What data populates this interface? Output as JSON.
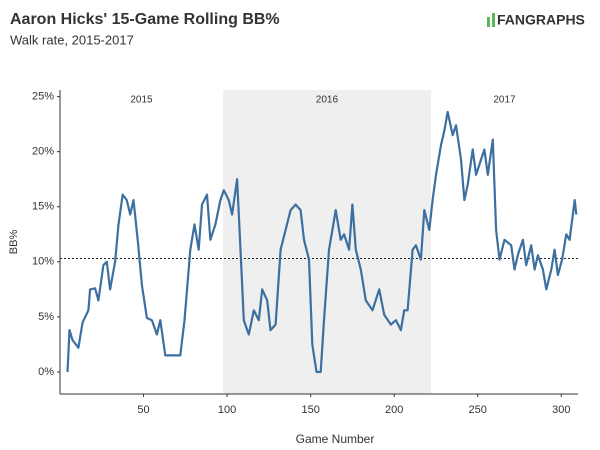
{
  "chart_data": {
    "type": "line",
    "title": "Aaron Hicks' 15-Game Rolling BB%",
    "subtitle": "Walk rate, 2015-2017",
    "logo": "FANGRAPHS",
    "x_label": "Game Number",
    "y_label": "BB%",
    "xlim": [
      0,
      310
    ],
    "ylim": [
      -2,
      25.6
    ],
    "xticks": [
      50,
      100,
      150,
      200,
      250,
      300
    ],
    "yticks": [
      {
        "value": 0,
        "label": "0%"
      },
      {
        "value": 5,
        "label": "5%"
      },
      {
        "value": 10,
        "label": "10%"
      },
      {
        "value": 15,
        "label": "15%"
      },
      {
        "value": 20,
        "label": "20%"
      },
      {
        "value": 25,
        "label": "25%"
      }
    ],
    "reference_line": 10.3,
    "seasons": [
      {
        "label": "2015",
        "start": 0,
        "end": 97.5,
        "shaded": false
      },
      {
        "label": "2016",
        "start": 97.5,
        "end": 222,
        "shaded": true
      },
      {
        "label": "2017",
        "start": 222,
        "end": 310,
        "shaded": false
      }
    ],
    "series": [
      {
        "name": "BB%",
        "color": "#3d6fa0",
        "x": [
          4.5,
          5.7,
          7.5,
          11,
          13.5,
          17,
          18,
          21,
          23,
          26,
          28,
          30,
          33,
          35,
          37.5,
          40,
          42,
          44,
          46.5,
          49,
          52,
          55,
          58,
          60,
          63,
          72,
          74.5,
          78,
          80.5,
          83,
          85,
          88,
          90,
          93,
          96,
          98,
          101,
          103,
          106,
          108,
          110,
          113,
          116,
          119,
          121,
          124,
          126,
          129,
          132,
          135,
          138,
          141,
          144,
          146,
          149,
          151,
          153.5,
          156,
          158,
          161,
          163,
          165,
          168,
          170,
          173,
          175,
          177,
          180,
          183,
          187,
          191,
          194,
          198,
          201,
          204,
          206,
          208,
          211,
          213,
          216,
          218,
          221,
          223,
          225,
          228,
          230,
          232,
          235,
          237,
          240,
          242,
          244,
          247,
          249,
          252,
          254,
          256,
          259,
          261,
          263,
          266,
          270,
          272,
          274,
          277,
          279,
          282,
          284,
          286,
          289,
          291,
          294,
          296,
          298,
          300.5,
          303,
          305,
          308,
          309
        ],
        "values": [
          0,
          3.8,
          2.9,
          2.2,
          4.5,
          5.6,
          7.5,
          7.6,
          6.5,
          9.7,
          10,
          7.5,
          10,
          13.4,
          16.1,
          15.6,
          14.3,
          15.6,
          12,
          7.9,
          4.9,
          4.7,
          3.4,
          4.7,
          1.5,
          1.5,
          4.7,
          11.1,
          13.4,
          11.1,
          15.2,
          16.1,
          12,
          13.4,
          15.6,
          16.5,
          15.6,
          14.3,
          17.5,
          11.1,
          4.7,
          3.4,
          5.6,
          4.7,
          7.5,
          6.5,
          3.8,
          4.3,
          11.1,
          12.9,
          14.7,
          15.2,
          14.7,
          12,
          10.2,
          2.5,
          0,
          0,
          4.7,
          11.1,
          12.9,
          14.7,
          12,
          12.5,
          11.1,
          15.2,
          11.1,
          9.3,
          6.5,
          5.6,
          7.5,
          5.2,
          4.3,
          4.7,
          3.8,
          5.6,
          5.6,
          11.1,
          11.5,
          10.2,
          14.7,
          12.9,
          15.6,
          17.9,
          20.6,
          21.9,
          23.6,
          21.5,
          22.4,
          19.3,
          15.6,
          17,
          20.2,
          17.9,
          19.3,
          20.2,
          17.9,
          21.1,
          12.9,
          10.2,
          12,
          11.5,
          9.3,
          10.6,
          12,
          9.7,
          11.5,
          9.3,
          10.6,
          9.3,
          7.5,
          9.3,
          11.1,
          8.8,
          10.2,
          12.5,
          12,
          15.6,
          14.3
        ]
      }
    ]
  }
}
